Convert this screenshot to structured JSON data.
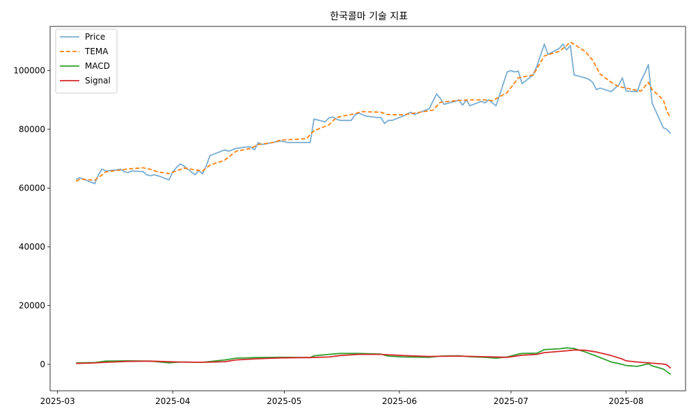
{
  "chart_data": {
    "type": "line",
    "title": "한국콜마 기술 지표",
    "xlabel": "",
    "ylabel": "",
    "xlim": [
      "2025-02-27",
      "2025-08-17"
    ],
    "ylim": [
      -9000,
      115000
    ],
    "x_ticks": [
      "2025-03-01",
      "2025-04-01",
      "2025-05-01",
      "2025-06-01",
      "2025-07-01",
      "2025-08-01"
    ],
    "x_tick_labels": [
      "2025-03",
      "2025-04",
      "2025-05",
      "2025-06",
      "2025-07",
      "2025-08"
    ],
    "y_ticks": [
      0,
      20000,
      40000,
      60000,
      80000,
      100000
    ],
    "y_tick_labels": [
      "0",
      "20000",
      "40000",
      "60000",
      "80000",
      "100000"
    ],
    "grid": false,
    "legend_position": "top-left",
    "series": [
      {
        "name": "Price",
        "color": "#1f77b4",
        "opacity": 0.6,
        "dash": "solid",
        "points": [
          [
            "2025-03-06",
            63000
          ],
          [
            "2025-03-07",
            63500
          ],
          [
            "2025-03-10",
            62000
          ],
          [
            "2025-03-11",
            61500
          ],
          [
            "2025-03-12",
            64500
          ],
          [
            "2025-03-13",
            66500
          ],
          [
            "2025-03-14",
            65800
          ],
          [
            "2025-03-17",
            66200
          ],
          [
            "2025-03-18",
            66400
          ],
          [
            "2025-03-19",
            65500
          ],
          [
            "2025-03-20",
            65300
          ],
          [
            "2025-03-21",
            65800
          ],
          [
            "2025-03-24",
            65600
          ],
          [
            "2025-03-25",
            64500
          ],
          [
            "2025-03-26",
            64200
          ],
          [
            "2025-03-27",
            64500
          ],
          [
            "2025-03-28",
            64200
          ],
          [
            "2025-03-31",
            62800
          ],
          [
            "2025-04-01",
            65500
          ],
          [
            "2025-04-02",
            67000
          ],
          [
            "2025-04-03",
            68200
          ],
          [
            "2025-04-04",
            67500
          ],
          [
            "2025-04-07",
            64500
          ],
          [
            "2025-04-08",
            66000
          ],
          [
            "2025-04-09",
            64800
          ],
          [
            "2025-04-10",
            67500
          ],
          [
            "2025-04-11",
            71000
          ],
          [
            "2025-04-14",
            72500
          ],
          [
            "2025-04-15",
            73000
          ],
          [
            "2025-04-16",
            72500
          ],
          [
            "2025-04-17",
            73000
          ],
          [
            "2025-04-18",
            73500
          ],
          [
            "2025-04-21",
            74000
          ],
          [
            "2025-04-22",
            74000
          ],
          [
            "2025-04-23",
            73000
          ],
          [
            "2025-04-24",
            75500
          ],
          [
            "2025-04-25",
            74800
          ],
          [
            "2025-04-28",
            75500
          ],
          [
            "2025-04-29",
            75800
          ],
          [
            "2025-04-30",
            76000
          ],
          [
            "2025-05-02",
            75500
          ],
          [
            "2025-05-07",
            75500
          ],
          [
            "2025-05-08",
            75500
          ],
          [
            "2025-05-09",
            83500
          ],
          [
            "2025-05-12",
            82500
          ],
          [
            "2025-05-13",
            83800
          ],
          [
            "2025-05-14",
            84200
          ],
          [
            "2025-05-15",
            83500
          ],
          [
            "2025-05-16",
            83000
          ],
          [
            "2025-05-19",
            83000
          ],
          [
            "2025-05-20",
            84800
          ],
          [
            "2025-05-21",
            85500
          ],
          [
            "2025-05-22",
            85000
          ],
          [
            "2025-05-23",
            84500
          ],
          [
            "2025-05-26",
            84000
          ],
          [
            "2025-05-27",
            84000
          ],
          [
            "2025-05-28",
            82000
          ],
          [
            "2025-05-29",
            83000
          ],
          [
            "2025-05-30",
            83000
          ],
          [
            "2025-06-02",
            84500
          ],
          [
            "2025-06-04",
            85800
          ],
          [
            "2025-06-05",
            85000
          ],
          [
            "2025-06-09",
            87000
          ],
          [
            "2025-06-10",
            89500
          ],
          [
            "2025-06-11",
            92000
          ],
          [
            "2025-06-12",
            90500
          ],
          [
            "2025-06-13",
            88500
          ],
          [
            "2025-06-16",
            89500
          ],
          [
            "2025-06-17",
            90000
          ],
          [
            "2025-06-18",
            88200
          ],
          [
            "2025-06-19",
            90000
          ],
          [
            "2025-06-20",
            88000
          ],
          [
            "2025-06-23",
            89500
          ],
          [
            "2025-06-24",
            89000
          ],
          [
            "2025-06-25",
            90000
          ],
          [
            "2025-06-26",
            89000
          ],
          [
            "2025-06-27",
            88000
          ],
          [
            "2025-06-30",
            99500
          ],
          [
            "2025-07-01",
            100000
          ],
          [
            "2025-07-02",
            99500
          ],
          [
            "2025-07-03",
            99800
          ],
          [
            "2025-07-04",
            95500
          ],
          [
            "2025-07-07",
            98500
          ],
          [
            "2025-07-08",
            101500
          ],
          [
            "2025-07-10",
            109000
          ],
          [
            "2025-07-11",
            105500
          ],
          [
            "2025-07-14",
            107500
          ],
          [
            "2025-07-15",
            109000
          ],
          [
            "2025-07-16",
            107000
          ],
          [
            "2025-07-17",
            108500
          ],
          [
            "2025-07-18",
            98500
          ],
          [
            "2025-07-21",
            97500
          ],
          [
            "2025-07-22",
            97000
          ],
          [
            "2025-07-23",
            96000
          ],
          [
            "2025-07-24",
            93500
          ],
          [
            "2025-07-25",
            94000
          ],
          [
            "2025-07-28",
            92800
          ],
          [
            "2025-07-29",
            94000
          ],
          [
            "2025-07-30",
            95000
          ],
          [
            "2025-07-31",
            97500
          ],
          [
            "2025-08-01",
            93000
          ],
          [
            "2025-08-04",
            92800
          ],
          [
            "2025-08-05",
            96500
          ],
          [
            "2025-08-06",
            99000
          ],
          [
            "2025-08-07",
            102000
          ],
          [
            "2025-08-08",
            89000
          ],
          [
            "2025-08-11",
            80500
          ],
          [
            "2025-08-12",
            80000
          ],
          [
            "2025-08-13",
            78500
          ]
        ]
      },
      {
        "name": "TEMA",
        "color": "#ff7f0e",
        "opacity": 1,
        "dash": "dashed",
        "points": [
          [
            "2025-03-06",
            62300
          ],
          [
            "2025-03-07",
            63000
          ],
          [
            "2025-03-10",
            62800
          ],
          [
            "2025-03-11",
            62700
          ],
          [
            "2025-03-13",
            64500
          ],
          [
            "2025-03-14",
            65500
          ],
          [
            "2025-03-17",
            66000
          ],
          [
            "2025-03-20",
            66500
          ],
          [
            "2025-03-24",
            66900
          ],
          [
            "2025-03-26",
            66400
          ],
          [
            "2025-03-28",
            65500
          ],
          [
            "2025-03-31",
            64900
          ],
          [
            "2025-04-02",
            65800
          ],
          [
            "2025-04-04",
            66800
          ],
          [
            "2025-04-07",
            66200
          ],
          [
            "2025-04-09",
            65800
          ],
          [
            "2025-04-11",
            67800
          ],
          [
            "2025-04-15",
            69500
          ],
          [
            "2025-04-18",
            72500
          ],
          [
            "2025-04-22",
            73500
          ],
          [
            "2025-04-24",
            74800
          ],
          [
            "2025-04-28",
            75500
          ],
          [
            "2025-04-30",
            76300
          ],
          [
            "2025-05-07",
            76800
          ],
          [
            "2025-05-09",
            79500
          ],
          [
            "2025-05-13",
            81500
          ],
          [
            "2025-05-15",
            84000
          ],
          [
            "2025-05-20",
            85300
          ],
          [
            "2025-05-22",
            86000
          ],
          [
            "2025-05-27",
            85800
          ],
          [
            "2025-05-29",
            85000
          ],
          [
            "2025-06-02",
            84900
          ],
          [
            "2025-06-05",
            85500
          ],
          [
            "2025-06-10",
            86500
          ],
          [
            "2025-06-12",
            89200
          ],
          [
            "2025-06-17",
            89800
          ],
          [
            "2025-06-20",
            90000
          ],
          [
            "2025-06-24",
            90000
          ],
          [
            "2025-06-26",
            89700
          ],
          [
            "2025-06-30",
            92500
          ],
          [
            "2025-07-03",
            97500
          ],
          [
            "2025-07-07",
            98500
          ],
          [
            "2025-07-10",
            105000
          ],
          [
            "2025-07-14",
            106500
          ],
          [
            "2025-07-16",
            108500
          ],
          [
            "2025-07-17",
            109700
          ],
          [
            "2025-07-21",
            106500
          ],
          [
            "2025-07-23",
            103500
          ],
          [
            "2025-07-25",
            98800
          ],
          [
            "2025-07-28",
            96000
          ],
          [
            "2025-07-30",
            94500
          ],
          [
            "2025-08-01",
            94000
          ],
          [
            "2025-08-04",
            93200
          ],
          [
            "2025-08-05",
            93000
          ],
          [
            "2025-08-07",
            96000
          ],
          [
            "2025-08-08",
            93500
          ],
          [
            "2025-08-11",
            90000
          ],
          [
            "2025-08-12",
            86000
          ],
          [
            "2025-08-13",
            84000
          ]
        ]
      },
      {
        "name": "MACD",
        "color": "#2ca02c",
        "opacity": 1,
        "dash": "solid",
        "points": [
          [
            "2025-03-06",
            500
          ],
          [
            "2025-03-11",
            600
          ],
          [
            "2025-03-14",
            1100
          ],
          [
            "2025-03-20",
            1200
          ],
          [
            "2025-03-26",
            1100
          ],
          [
            "2025-03-31",
            500
          ],
          [
            "2025-04-03",
            800
          ],
          [
            "2025-04-09",
            700
          ],
          [
            "2025-04-15",
            1500
          ],
          [
            "2025-04-18",
            2100
          ],
          [
            "2025-04-24",
            2300
          ],
          [
            "2025-04-30",
            2400
          ],
          [
            "2025-05-08",
            2300
          ],
          [
            "2025-05-09",
            2900
          ],
          [
            "2025-05-13",
            3400
          ],
          [
            "2025-05-16",
            3700
          ],
          [
            "2025-05-21",
            3700
          ],
          [
            "2025-05-27",
            3500
          ],
          [
            "2025-05-29",
            2800
          ],
          [
            "2025-06-02",
            2500
          ],
          [
            "2025-06-09",
            2400
          ],
          [
            "2025-06-12",
            2800
          ],
          [
            "2025-06-17",
            2900
          ],
          [
            "2025-06-20",
            2600
          ],
          [
            "2025-06-24",
            2400
          ],
          [
            "2025-06-27",
            2100
          ],
          [
            "2025-06-30",
            2500
          ],
          [
            "2025-07-03",
            3500
          ],
          [
            "2025-07-04",
            3700
          ],
          [
            "2025-07-08",
            3800
          ],
          [
            "2025-07-10",
            5000
          ],
          [
            "2025-07-14",
            5300
          ],
          [
            "2025-07-16",
            5600
          ],
          [
            "2025-07-18",
            5400
          ],
          [
            "2025-07-21",
            4200
          ],
          [
            "2025-07-24",
            2800
          ],
          [
            "2025-07-28",
            800
          ],
          [
            "2025-07-31",
            0
          ],
          [
            "2025-08-01",
            -400
          ],
          [
            "2025-08-04",
            -700
          ],
          [
            "2025-08-07",
            200
          ],
          [
            "2025-08-08",
            -500
          ],
          [
            "2025-08-11",
            -1600
          ],
          [
            "2025-08-13",
            -3400
          ]
        ]
      },
      {
        "name": "Signal",
        "color": "#d62728",
        "opacity": 1,
        "dash": "solid",
        "points": [
          [
            "2025-03-06",
            300
          ],
          [
            "2025-03-11",
            500
          ],
          [
            "2025-03-14",
            700
          ],
          [
            "2025-03-20",
            1000
          ],
          [
            "2025-03-26",
            1100
          ],
          [
            "2025-03-31",
            900
          ],
          [
            "2025-04-03",
            800
          ],
          [
            "2025-04-09",
            700
          ],
          [
            "2025-04-15",
            900
          ],
          [
            "2025-04-18",
            1500
          ],
          [
            "2025-04-24",
            1900
          ],
          [
            "2025-04-30",
            2200
          ],
          [
            "2025-05-08",
            2300
          ],
          [
            "2025-05-13",
            2500
          ],
          [
            "2025-05-16",
            3000
          ],
          [
            "2025-05-21",
            3400
          ],
          [
            "2025-05-27",
            3400
          ],
          [
            "2025-06-02",
            3000
          ],
          [
            "2025-06-09",
            2700
          ],
          [
            "2025-06-17",
            2800
          ],
          [
            "2025-06-24",
            2600
          ],
          [
            "2025-06-30",
            2400
          ],
          [
            "2025-07-04",
            3100
          ],
          [
            "2025-07-08",
            3400
          ],
          [
            "2025-07-10",
            4000
          ],
          [
            "2025-07-16",
            4600
          ],
          [
            "2025-07-18",
            4900
          ],
          [
            "2025-07-21",
            4800
          ],
          [
            "2025-07-24",
            4200
          ],
          [
            "2025-07-28",
            3000
          ],
          [
            "2025-07-31",
            1800
          ],
          [
            "2025-08-01",
            1200
          ],
          [
            "2025-08-04",
            800
          ],
          [
            "2025-08-07",
            500
          ],
          [
            "2025-08-11",
            100
          ],
          [
            "2025-08-12",
            -200
          ],
          [
            "2025-08-13",
            -1300
          ]
        ]
      }
    ]
  }
}
